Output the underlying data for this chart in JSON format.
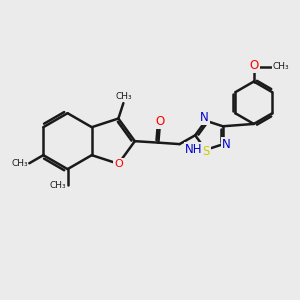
{
  "background_color": "#ebebeb",
  "bond_color": "#1a1a1a",
  "bond_width": 1.8,
  "atom_colors": {
    "O": "#ff0000",
    "N": "#0000cd",
    "S": "#cccc00",
    "C": "#1a1a1a"
  },
  "figsize": [
    3.0,
    3.0
  ],
  "dpi": 100,
  "xlim": [
    0,
    10
  ],
  "ylim": [
    0,
    10
  ]
}
